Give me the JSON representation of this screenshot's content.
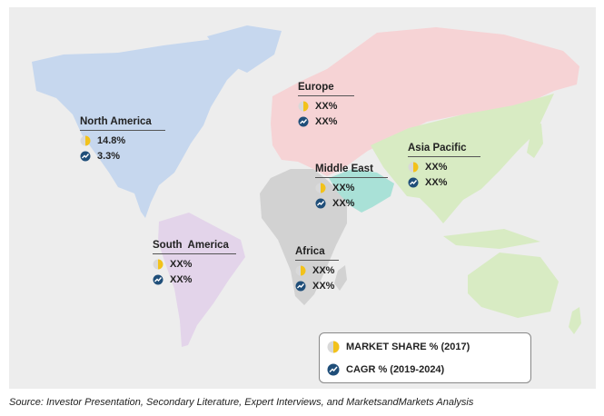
{
  "regions": {
    "north_america": {
      "name": "North America",
      "market_share": "14.8%",
      "cagr": "3.3%"
    },
    "europe": {
      "name": "Europe",
      "market_share": "XX%",
      "cagr": "XX%"
    },
    "asia_pacific": {
      "name": "Asia Pacific",
      "market_share": "XX%",
      "cagr": "XX%"
    },
    "middle_east": {
      "name": "Middle East",
      "market_share": "XX%",
      "cagr": "XX%"
    },
    "south_america": {
      "name": "South  America",
      "market_share": "XX%",
      "cagr": "XX%"
    },
    "africa": {
      "name": "Africa",
      "market_share": "XX%",
      "cagr": "XX%"
    }
  },
  "legend": {
    "market_share_label": "MARKET SHARE % (2017)",
    "cagr_label": "CAGR % (2019-2024)"
  },
  "source": "Source: Investor Presentation, Secondary Literature, Expert Interviews, and MarketsandMarkets Analysis",
  "colors": {
    "panel": "#ededed",
    "north_america": "#c6d7ee",
    "south_america": "#e3d4ea",
    "europe": "#f6d3d5",
    "asia_pacific": "#d8ebc3",
    "middle_east": "#a9e1d7",
    "africa": "#d2d2d2",
    "share_icon": "#f2c21b",
    "cagr_icon": "#1f4e79"
  },
  "icons": {
    "market_share": "pie-chart-icon",
    "cagr": "growth-chart-icon"
  }
}
